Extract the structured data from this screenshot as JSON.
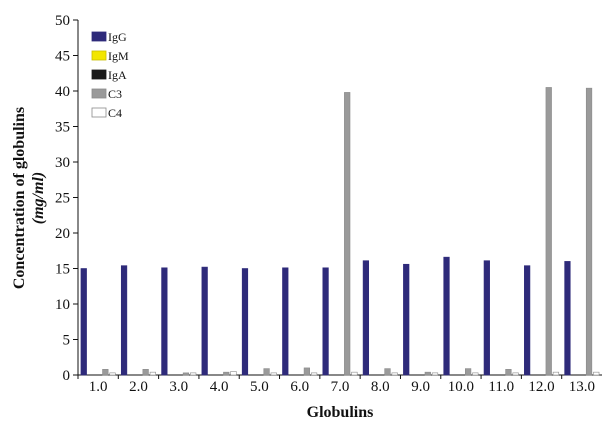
{
  "chart_data": {
    "type": "bar",
    "title": "",
    "xlabel": "Globulins",
    "ylabel_line1": "Concentration of globulins",
    "ylabel_line2": "(mg/ml)",
    "ylim": [
      0,
      50
    ],
    "yticks": [
      "0",
      "5",
      "10",
      "15",
      "20",
      "25",
      "30",
      "35",
      "40",
      "45",
      "50"
    ],
    "ytick_values": [
      0,
      5,
      10,
      15,
      20,
      25,
      30,
      35,
      40,
      45,
      50
    ],
    "categories": [
      "1.0",
      "2.0",
      "3.0",
      "4.0",
      "5.0",
      "6.0",
      "7.0",
      "8.0",
      "9.0",
      "10.0",
      "11.0",
      "12.0",
      "13.0"
    ],
    "grid": false,
    "legend_position": "top-left",
    "series": [
      {
        "name": "IgG",
        "color": "#2e2a7a",
        "edge": "#2e2a7a",
        "values": [
          15.0,
          15.4,
          15.1,
          15.2,
          15.0,
          15.1,
          15.1,
          16.1,
          15.6,
          16.6,
          16.1,
          15.4,
          16.0
        ]
      },
      {
        "name": "IgM",
        "color": "#f2e600",
        "edge": "#c8bf00",
        "values": [
          0,
          0,
          0,
          0,
          0,
          0,
          0,
          0,
          0,
          0,
          0,
          0,
          0
        ]
      },
      {
        "name": "IgA",
        "color": "#1a1a1a",
        "edge": "#1a1a1a",
        "values": [
          0,
          0,
          0,
          0,
          0,
          0,
          0,
          0,
          0,
          0,
          0,
          0,
          0
        ]
      },
      {
        "name": "C3",
        "color": "#9a9a9a",
        "edge": "#8a8a8a",
        "values": [
          0.8,
          0.8,
          0.3,
          0.4,
          0.9,
          1.0,
          39.8,
          0.9,
          0.4,
          0.9,
          0.8,
          40.5,
          40.4
        ]
      },
      {
        "name": "C4",
        "color": "#ffffff",
        "edge": "#8a8a8a",
        "values": [
          0.3,
          0.4,
          0.3,
          0.5,
          0.3,
          0.3,
          0.4,
          0.3,
          0.3,
          0.3,
          0.3,
          0.4,
          0.4
        ]
      }
    ]
  }
}
